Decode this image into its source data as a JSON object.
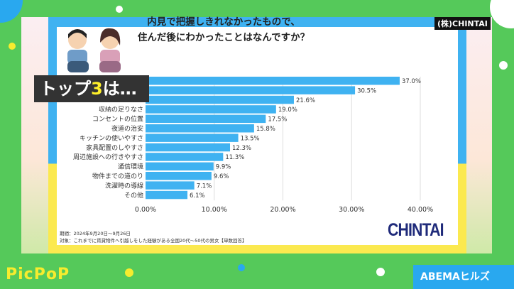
{
  "corp_label": "(株)CHINTAI",
  "title_line1": "内見で把握しきれなかったもので、",
  "title_line2": "住んだ後にわかったことはなんですか？",
  "overlay": {
    "prefix": "トップ",
    "number": "3",
    "suffix": "は…"
  },
  "notes": {
    "period": "期間：2024年9月20日〜9月26日",
    "target": "対象：これまでに賃貸物件へ引越しをした経験がある全国20代〜50代の男女【単数回答】"
  },
  "logo": "CHINTAI",
  "brand_left": "PicPoP",
  "brand_right": "ABEMAヒルズ",
  "colors": {
    "bar": "#3fb2f1",
    "background": "#55c95a",
    "frame_top": "#3fb2f1",
    "frame_bottom": "#fbe94f"
  },
  "chart_data": {
    "type": "bar",
    "orientation": "horizontal",
    "categories": [
      "",
      "",
      "",
      "収納の足りなさ",
      "コンセントの位置",
      "夜道の治安",
      "キッチンの使いやすさ",
      "家具配置のしやすさ",
      "周辺施設への行きやすさ",
      "通信環境",
      "物件までの道のり",
      "洗濯時の導線",
      "その他"
    ],
    "values": [
      37.0,
      30.5,
      21.6,
      19.0,
      17.5,
      15.8,
      13.5,
      12.3,
      11.3,
      9.9,
      9.6,
      7.1,
      6.1
    ],
    "value_labels": [
      "37.0%",
      "30.5%",
      "21.6%",
      "19.0%",
      "17.5%",
      "15.8%",
      "13.5%",
      "12.3%",
      "11.3%",
      "9.9%",
      "9.6%",
      "7.1%",
      "6.1%"
    ],
    "xlim": [
      0,
      40
    ],
    "xticks": [
      "0.00%",
      "10.00%",
      "20.00%",
      "30.00%",
      "40.00%"
    ],
    "grid": true
  }
}
